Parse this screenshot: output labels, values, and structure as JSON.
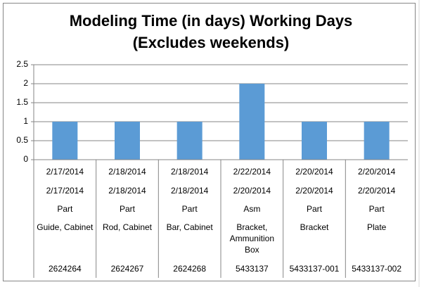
{
  "chart_data": {
    "type": "bar",
    "title": "Modeling Time (in days) Working Days (Excludes weekends)",
    "categories": [
      [
        "2/17/2014",
        "2/17/2014",
        "Part",
        "Guide, Cabinet",
        "2624264"
      ],
      [
        "2/18/2014",
        "2/18/2014",
        "Part",
        "Rod, Cabinet",
        "2624267"
      ],
      [
        "2/18/2014",
        "2/18/2014",
        "Part",
        "Bar, Cabinet",
        "2624268"
      ],
      [
        "2/22/2014",
        "2/20/2014",
        "Asm",
        "Bracket, Ammunition Box",
        "5433137"
      ],
      [
        "2/20/2014",
        "2/20/2014",
        "Part",
        "Bracket",
        "5433137-001"
      ],
      [
        "2/20/2014",
        "2/20/2014",
        "Part",
        "Plate",
        "5433137-002"
      ]
    ],
    "values": [
      1,
      1,
      1,
      2,
      1,
      1
    ],
    "color": "#5b9bd5",
    "ylim": [
      0,
      2.5
    ],
    "yticks": [
      0,
      0.5,
      1,
      1.5,
      2,
      2.5
    ],
    "grid": true
  }
}
